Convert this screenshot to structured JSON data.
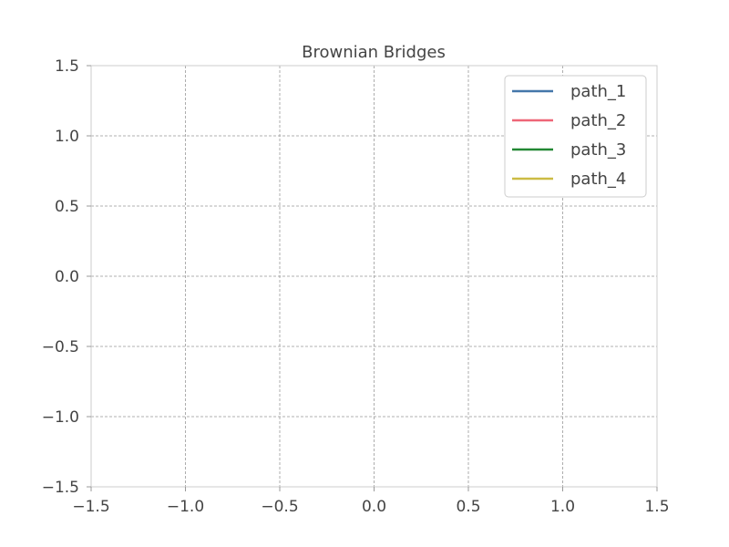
{
  "chart_data": {
    "type": "line",
    "title": "Brownian Bridges",
    "xlabel": "",
    "ylabel": "",
    "xlim": [
      -1.5,
      1.5
    ],
    "ylim": [
      -1.5,
      1.5
    ],
    "xticks": [
      -1.5,
      -1.0,
      -0.5,
      0.0,
      0.5,
      1.0,
      1.5
    ],
    "yticks": [
      -1.5,
      -1.0,
      -0.5,
      0.0,
      0.5,
      1.0,
      1.5
    ],
    "xtick_labels": [
      "−1.5",
      "−1.0",
      "−0.5",
      "0.0",
      "0.5",
      "1.0",
      "1.5"
    ],
    "ytick_labels": [
      "−1.5",
      "−1.0",
      "−0.5",
      "0.0",
      "0.5",
      "1.0",
      "1.5"
    ],
    "grid": true,
    "legend_position": "top-right",
    "series": [
      {
        "name": "path_1",
        "color": "#4477aa",
        "x": [],
        "y": []
      },
      {
        "name": "path_2",
        "color": "#ee6677",
        "x": [],
        "y": []
      },
      {
        "name": "path_3",
        "color": "#228833",
        "x": [],
        "y": []
      },
      {
        "name": "path_4",
        "color": "#ccbb44",
        "x": [],
        "y": []
      }
    ]
  }
}
